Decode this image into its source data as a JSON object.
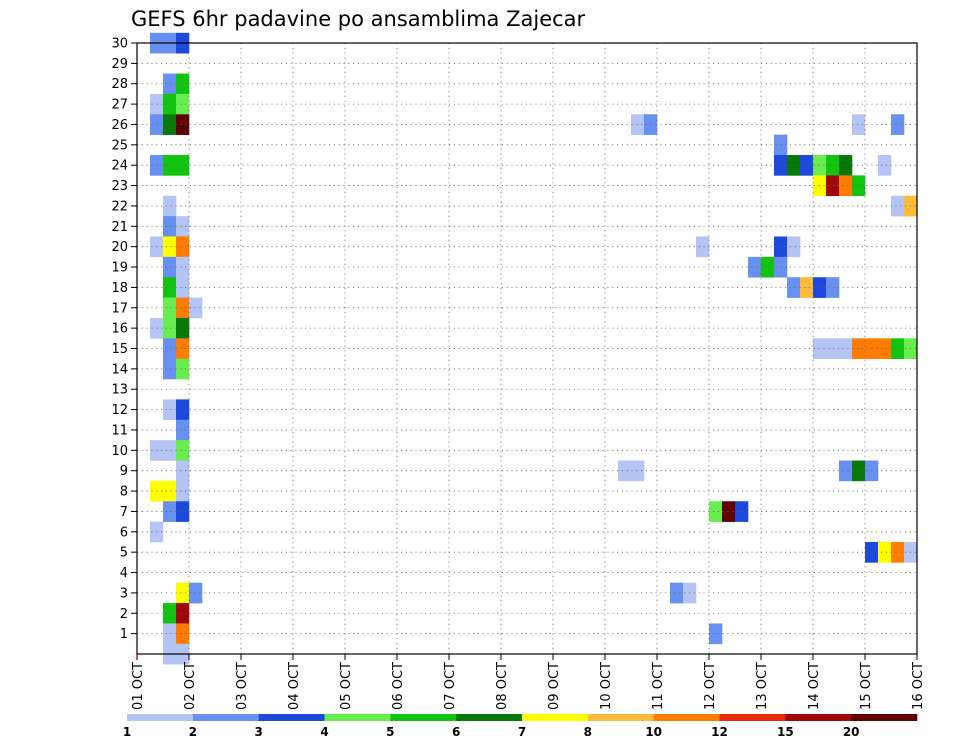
{
  "chart_data": {
    "type": "heatmap",
    "title": "GEFS 6hr padavine po ansamblima Zajecar",
    "y_ticks": [
      "1",
      "2",
      "3",
      "4",
      "5",
      "6",
      "7",
      "8",
      "9",
      "10",
      "11",
      "12",
      "13",
      "14",
      "15",
      "16",
      "17",
      "18",
      "19",
      "20",
      "21",
      "22",
      "23",
      "24",
      "25",
      "26",
      "27",
      "28",
      "29",
      "30"
    ],
    "ylim": [
      0,
      30
    ],
    "x_ticks": [
      "01 OCT",
      "02 OCT",
      "03 OCT",
      "04 OCT",
      "05 OCT",
      "06 OCT",
      "07 OCT",
      "08 OCT",
      "09 OCT",
      "10 OCT",
      "11 OCT",
      "12 OCT",
      "13 OCT",
      "14 OCT",
      "15 OCT",
      "16 OCT"
    ],
    "xlim": [
      1,
      16
    ],
    "time_step_days": 0.25,
    "grid": true,
    "colorbar": {
      "labels": [
        "1",
        "2",
        "3",
        "4",
        "5",
        "6",
        "7",
        "8",
        "10",
        "12",
        "15",
        "20"
      ],
      "colors": [
        "#b4c4f4",
        "#6890f0",
        "#1c48dc",
        "#68ec50",
        "#10c410",
        "#087808",
        "#ffff00",
        "#ffbc3c",
        "#ff7c00",
        "#e82808",
        "#a00808",
        "#600000"
      ]
    },
    "cells": [
      {
        "m": 30,
        "t": 1.25,
        "v": 2
      },
      {
        "m": 30,
        "t": 1.5,
        "v": 2
      },
      {
        "m": 30,
        "t": 1.75,
        "v": 3
      },
      {
        "m": 28,
        "t": 1.5,
        "v": 2
      },
      {
        "m": 28,
        "t": 1.75,
        "v": 5
      },
      {
        "m": 27,
        "t": 1.25,
        "v": 1
      },
      {
        "m": 27,
        "t": 1.5,
        "v": 5
      },
      {
        "m": 27,
        "t": 1.75,
        "v": 4
      },
      {
        "m": 26,
        "t": 1.25,
        "v": 2
      },
      {
        "m": 26,
        "t": 1.5,
        "v": 6
      },
      {
        "m": 26,
        "t": 1.75,
        "v": 20
      },
      {
        "m": 24,
        "t": 1.25,
        "v": 2
      },
      {
        "m": 24,
        "t": 1.5,
        "v": 5
      },
      {
        "m": 24,
        "t": 1.75,
        "v": 5
      },
      {
        "m": 22,
        "t": 1.5,
        "v": 1
      },
      {
        "m": 21,
        "t": 1.5,
        "v": 2
      },
      {
        "m": 21,
        "t": 1.75,
        "v": 1
      },
      {
        "m": 20,
        "t": 1.25,
        "v": 1
      },
      {
        "m": 20,
        "t": 1.5,
        "v": 7
      },
      {
        "m": 20,
        "t": 1.75,
        "v": 10
      },
      {
        "m": 19,
        "t": 1.5,
        "v": 2
      },
      {
        "m": 19,
        "t": 1.75,
        "v": 1
      },
      {
        "m": 18,
        "t": 1.5,
        "v": 5
      },
      {
        "m": 18,
        "t": 1.75,
        "v": 1
      },
      {
        "m": 17,
        "t": 1.5,
        "v": 4
      },
      {
        "m": 17,
        "t": 1.75,
        "v": 10
      },
      {
        "m": 17,
        "t": 2.0,
        "v": 1
      },
      {
        "m": 16,
        "t": 1.25,
        "v": 1
      },
      {
        "m": 16,
        "t": 1.5,
        "v": 4
      },
      {
        "m": 16,
        "t": 1.75,
        "v": 6
      },
      {
        "m": 15,
        "t": 1.5,
        "v": 2
      },
      {
        "m": 15,
        "t": 1.75,
        "v": 10
      },
      {
        "m": 14,
        "t": 1.5,
        "v": 2
      },
      {
        "m": 14,
        "t": 1.75,
        "v": 4
      },
      {
        "m": 12,
        "t": 1.5,
        "v": 1
      },
      {
        "m": 12,
        "t": 1.75,
        "v": 3
      },
      {
        "m": 11,
        "t": 1.75,
        "v": 2
      },
      {
        "m": 10,
        "t": 1.25,
        "v": 1
      },
      {
        "m": 10,
        "t": 1.5,
        "v": 1
      },
      {
        "m": 10,
        "t": 1.75,
        "v": 4
      },
      {
        "m": 9,
        "t": 1.75,
        "v": 1
      },
      {
        "m": 8,
        "t": 1.25,
        "v": 7
      },
      {
        "m": 8,
        "t": 1.5,
        "v": 7
      },
      {
        "m": 8,
        "t": 1.75,
        "v": 1
      },
      {
        "m": 7,
        "t": 1.5,
        "v": 2
      },
      {
        "m": 7,
        "t": 1.75,
        "v": 3
      },
      {
        "m": 6,
        "t": 1.25,
        "v": 1
      },
      {
        "m": 3,
        "t": 1.75,
        "v": 7
      },
      {
        "m": 3,
        "t": 2.0,
        "v": 2
      },
      {
        "m": 2,
        "t": 1.5,
        "v": 5
      },
      {
        "m": 2,
        "t": 1.75,
        "v": 15
      },
      {
        "m": 1,
        "t": 1.5,
        "v": 1
      },
      {
        "m": 1,
        "t": 1.75,
        "v": 10
      },
      {
        "m": 0,
        "t": 1.5,
        "v": 1
      },
      {
        "m": 0,
        "t": 1.75,
        "v": 1
      },
      {
        "m": 26,
        "t": 10.5,
        "v": 1
      },
      {
        "m": 26,
        "t": 10.75,
        "v": 2
      },
      {
        "m": 9,
        "t": 10.25,
        "v": 1
      },
      {
        "m": 9,
        "t": 10.5,
        "v": 1
      },
      {
        "m": 3,
        "t": 11.25,
        "v": 2
      },
      {
        "m": 3,
        "t": 11.5,
        "v": 1
      },
      {
        "m": 20,
        "t": 11.75,
        "v": 1
      },
      {
        "m": 7,
        "t": 12.0,
        "v": 4
      },
      {
        "m": 7,
        "t": 12.25,
        "v": 20
      },
      {
        "m": 7,
        "t": 12.5,
        "v": 3
      },
      {
        "m": 1,
        "t": 12.0,
        "v": 2
      },
      {
        "m": 25,
        "t": 13.25,
        "v": 2
      },
      {
        "m": 24,
        "t": 13.25,
        "v": 3
      },
      {
        "m": 24,
        "t": 13.5,
        "v": 6
      },
      {
        "m": 24,
        "t": 13.75,
        "v": 3
      },
      {
        "m": 24,
        "t": 14.0,
        "v": 4
      },
      {
        "m": 24,
        "t": 14.25,
        "v": 5
      },
      {
        "m": 24,
        "t": 14.5,
        "v": 6
      },
      {
        "m": 24,
        "t": 15.25,
        "v": 1
      },
      {
        "m": 23,
        "t": 14.0,
        "v": 7
      },
      {
        "m": 23,
        "t": 14.25,
        "v": 15
      },
      {
        "m": 23,
        "t": 14.5,
        "v": 10
      },
      {
        "m": 23,
        "t": 14.75,
        "v": 5
      },
      {
        "m": 22,
        "t": 15.5,
        "v": 1
      },
      {
        "m": 22,
        "t": 15.75,
        "v": 8
      },
      {
        "m": 26,
        "t": 14.75,
        "v": 1
      },
      {
        "m": 26,
        "t": 15.5,
        "v": 2
      },
      {
        "m": 20,
        "t": 13.25,
        "v": 3
      },
      {
        "m": 20,
        "t": 13.5,
        "v": 1
      },
      {
        "m": 19,
        "t": 12.75,
        "v": 2
      },
      {
        "m": 19,
        "t": 13.0,
        "v": 5
      },
      {
        "m": 19,
        "t": 13.25,
        "v": 2
      },
      {
        "m": 18,
        "t": 13.5,
        "v": 2
      },
      {
        "m": 18,
        "t": 13.75,
        "v": 8
      },
      {
        "m": 18,
        "t": 14.0,
        "v": 3
      },
      {
        "m": 18,
        "t": 14.25,
        "v": 2
      },
      {
        "m": 15,
        "t": 14.0,
        "v": 1
      },
      {
        "m": 15,
        "t": 14.25,
        "v": 1
      },
      {
        "m": 15,
        "t": 14.5,
        "v": 1
      },
      {
        "m": 15,
        "t": 14.75,
        "v": 10
      },
      {
        "m": 15,
        "t": 15.0,
        "v": 10
      },
      {
        "m": 15,
        "t": 15.25,
        "v": 10
      },
      {
        "m": 15,
        "t": 15.5,
        "v": 5
      },
      {
        "m": 15,
        "t": 15.75,
        "v": 4
      },
      {
        "m": 9,
        "t": 14.5,
        "v": 2
      },
      {
        "m": 9,
        "t": 14.75,
        "v": 6
      },
      {
        "m": 9,
        "t": 15.0,
        "v": 2
      },
      {
        "m": 5,
        "t": 15.0,
        "v": 3
      },
      {
        "m": 5,
        "t": 15.25,
        "v": 7
      },
      {
        "m": 5,
        "t": 15.5,
        "v": 10
      },
      {
        "m": 5,
        "t": 15.75,
        "v": 1
      }
    ]
  }
}
